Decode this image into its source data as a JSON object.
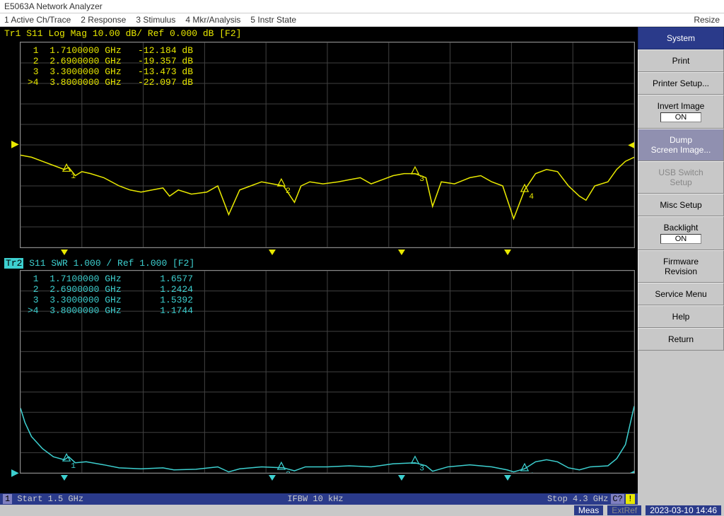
{
  "window_title": "E5063A Network Analyzer",
  "menu": {
    "active": "1 Active Ch/Trace",
    "response": "2 Response",
    "stimulus": "3 Stimulus",
    "mkr": "4 Mkr/Analysis",
    "instr": "5 Instr State",
    "resize": "Resize"
  },
  "sidebar": {
    "header": "System",
    "print": "Print",
    "printer_setup": "Printer Setup...",
    "invert_image": "Invert Image",
    "invert_image_state": "ON",
    "dump": "Dump\nScreen Image...",
    "usb": "USB Switch\nSetup",
    "misc": "Misc Setup",
    "backlight": "Backlight",
    "backlight_state": "ON",
    "firmware": "Firmware\nRevision",
    "service": "Service Menu",
    "help": "Help",
    "return": "Return"
  },
  "trace1": {
    "header": "Tr1 S11 Log Mag 10.00 dB/ Ref 0.000 dB [F2]",
    "color": "#e8e800",
    "yticks": [
      "50.00",
      "40.00",
      "30.00",
      "20.00",
      "10.00",
      "0.000",
      "-10.00",
      "-20.00",
      "-30.00",
      "-40.00",
      "-50.00"
    ],
    "ref_index": 5,
    "xlim": [
      1.5,
      4.3
    ],
    "ylim": [
      -50,
      50
    ],
    "markers": [
      {
        "n": "1",
        "freq": "1.7100000 GHz",
        "val": "-12.184 dB",
        "x": 1.71,
        "y": -12.184
      },
      {
        "n": "2",
        "freq": "2.6900000 GHz",
        "val": "-19.357 dB",
        "x": 2.69,
        "y": -19.357
      },
      {
        "n": "3",
        "freq": "3.3000000 GHz",
        "val": "-13.473 dB",
        "x": 3.3,
        "y": -13.473
      },
      {
        "n": ">4",
        "freq": "3.8000000 GHz",
        "val": "-22.097 dB",
        "x": 3.8,
        "y": -22.097
      }
    ],
    "points": [
      [
        1.5,
        -5
      ],
      [
        1.55,
        -6
      ],
      [
        1.6,
        -8
      ],
      [
        1.65,
        -10
      ],
      [
        1.7,
        -12
      ],
      [
        1.72,
        -11
      ],
      [
        1.75,
        -15
      ],
      [
        1.78,
        -13
      ],
      [
        1.82,
        -14
      ],
      [
        1.88,
        -16
      ],
      [
        1.95,
        -20
      ],
      [
        2.0,
        -22
      ],
      [
        2.05,
        -23
      ],
      [
        2.1,
        -22
      ],
      [
        2.15,
        -21
      ],
      [
        2.18,
        -25
      ],
      [
        2.22,
        -22
      ],
      [
        2.28,
        -24
      ],
      [
        2.35,
        -23
      ],
      [
        2.4,
        -20
      ],
      [
        2.45,
        -34
      ],
      [
        2.5,
        -22
      ],
      [
        2.55,
        -20
      ],
      [
        2.6,
        -18
      ],
      [
        2.65,
        -19
      ],
      [
        2.7,
        -20
      ],
      [
        2.75,
        -28
      ],
      [
        2.78,
        -20
      ],
      [
        2.82,
        -18
      ],
      [
        2.88,
        -19
      ],
      [
        2.95,
        -18
      ],
      [
        3.0,
        -17
      ],
      [
        3.05,
        -16
      ],
      [
        3.1,
        -19
      ],
      [
        3.15,
        -17
      ],
      [
        3.2,
        -15
      ],
      [
        3.25,
        -14
      ],
      [
        3.3,
        -14
      ],
      [
        3.35,
        -16
      ],
      [
        3.38,
        -30
      ],
      [
        3.42,
        -18
      ],
      [
        3.48,
        -19
      ],
      [
        3.55,
        -16
      ],
      [
        3.6,
        -15
      ],
      [
        3.65,
        -18
      ],
      [
        3.7,
        -20
      ],
      [
        3.75,
        -36
      ],
      [
        3.8,
        -22
      ],
      [
        3.85,
        -14
      ],
      [
        3.9,
        -12
      ],
      [
        3.95,
        -13
      ],
      [
        4.0,
        -20
      ],
      [
        4.05,
        -25
      ],
      [
        4.08,
        -27
      ],
      [
        4.12,
        -20
      ],
      [
        4.18,
        -18
      ],
      [
        4.22,
        -12
      ],
      [
        4.26,
        -8
      ],
      [
        4.3,
        -6
      ]
    ]
  },
  "trace2": {
    "header_pre": "Tr2",
    "header_post": " S11 SWR 1.000 / Ref 1.000  [F2]",
    "color": "#3dd0d0",
    "yticks": [
      "11.00",
      "10.00",
      "9.000",
      "8.000",
      "7.000",
      "6.000",
      "5.000",
      "4.000",
      "3.000",
      "2.000",
      "1.000"
    ],
    "ref_index": 10,
    "xlim": [
      1.5,
      4.3
    ],
    "ylim": [
      1,
      11
    ],
    "markers": [
      {
        "n": "1",
        "freq": "1.7100000 GHz",
        "val": "1.6577",
        "x": 1.71,
        "y": 1.6577
      },
      {
        "n": "2",
        "freq": "2.6900000 GHz",
        "val": "1.2424",
        "x": 2.69,
        "y": 1.2424
      },
      {
        "n": "3",
        "freq": "3.3000000 GHz",
        "val": "1.5392",
        "x": 3.3,
        "y": 1.5392
      },
      {
        "n": ">4",
        "freq": "3.8000000 GHz",
        "val": "1.1744",
        "x": 3.8,
        "y": 1.1744
      }
    ],
    "points": [
      [
        1.5,
        4.2
      ],
      [
        1.52,
        3.5
      ],
      [
        1.55,
        2.8
      ],
      [
        1.6,
        2.2
      ],
      [
        1.65,
        1.8
      ],
      [
        1.7,
        1.65
      ],
      [
        1.72,
        1.8
      ],
      [
        1.75,
        1.5
      ],
      [
        1.8,
        1.55
      ],
      [
        1.88,
        1.4
      ],
      [
        1.95,
        1.25
      ],
      [
        2.05,
        1.2
      ],
      [
        2.15,
        1.25
      ],
      [
        2.2,
        1.15
      ],
      [
        2.3,
        1.18
      ],
      [
        2.4,
        1.3
      ],
      [
        2.45,
        1.05
      ],
      [
        2.5,
        1.2
      ],
      [
        2.6,
        1.3
      ],
      [
        2.7,
        1.25
      ],
      [
        2.75,
        1.1
      ],
      [
        2.8,
        1.3
      ],
      [
        2.9,
        1.3
      ],
      [
        3.0,
        1.35
      ],
      [
        3.1,
        1.3
      ],
      [
        3.2,
        1.45
      ],
      [
        3.3,
        1.5
      ],
      [
        3.35,
        1.35
      ],
      [
        3.38,
        1.08
      ],
      [
        3.45,
        1.3
      ],
      [
        3.55,
        1.4
      ],
      [
        3.65,
        1.3
      ],
      [
        3.72,
        1.15
      ],
      [
        3.75,
        1.05
      ],
      [
        3.8,
        1.2
      ],
      [
        3.85,
        1.55
      ],
      [
        3.9,
        1.65
      ],
      [
        3.95,
        1.55
      ],
      [
        4.0,
        1.25
      ],
      [
        4.05,
        1.15
      ],
      [
        4.1,
        1.3
      ],
      [
        4.18,
        1.35
      ],
      [
        4.22,
        1.7
      ],
      [
        4.26,
        2.4
      ],
      [
        4.3,
        4.3
      ]
    ]
  },
  "status": {
    "ch": "1",
    "start": "Start 1.5 GHz",
    "ifbw": "IFBW 10 kHz",
    "stop": "Stop 4.3 GHz",
    "cq": "C?",
    "excl": "!"
  },
  "bottom": {
    "meas": "Meas",
    "extref": "ExtRef",
    "datetime": "2023-03-10 14:46"
  }
}
